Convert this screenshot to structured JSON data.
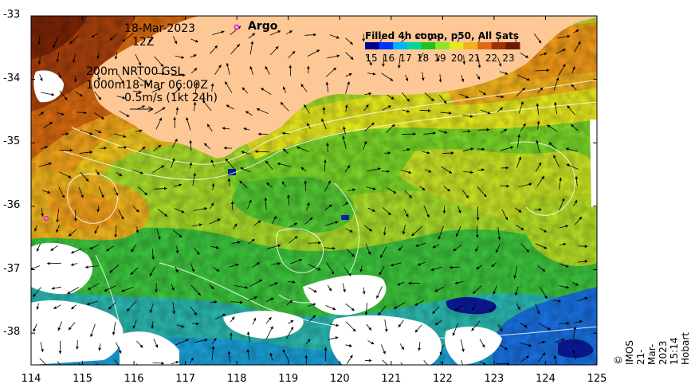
{
  "map": {
    "date": "18-Mar-2023",
    "time": "12Z",
    "depth_line_1": "200m  NRT00 GSL",
    "depth_line_2": "1000m18-Mar 06:00Z",
    "scale_vector": "0.5m/s (1kt 24h)",
    "argo_label": "Argo",
    "credit": "© IMOS 21-Mar-2023 15:14 Hobart"
  },
  "legend": {
    "title": "Filled 4h comp, p50, All Sats",
    "ticks": [
      "15",
      "16",
      "17",
      "18",
      "19",
      "20",
      "21",
      "22",
      "23"
    ],
    "colors": [
      "#00008f",
      "#0033ff",
      "#00b4ff",
      "#00d69a",
      "#1ec41e",
      "#8ee61e",
      "#e6e81e",
      "#f2b21e",
      "#e06a10",
      "#a03008",
      "#6a1a04"
    ]
  },
  "axes": {
    "x_ticks": [
      "114",
      "115",
      "116",
      "117",
      "118",
      "119",
      "120",
      "121",
      "122",
      "123",
      "124",
      "125"
    ],
    "y_ticks": [
      "-33",
      "-34",
      "-35",
      "-36",
      "-37",
      "-38"
    ],
    "x_range": [
      114,
      125
    ],
    "y_range": [
      -38.5,
      -33
    ]
  },
  "colors": {
    "land": "#fdc896",
    "cloud": "#ffffff",
    "argo_marker": "#e020e0"
  }
}
